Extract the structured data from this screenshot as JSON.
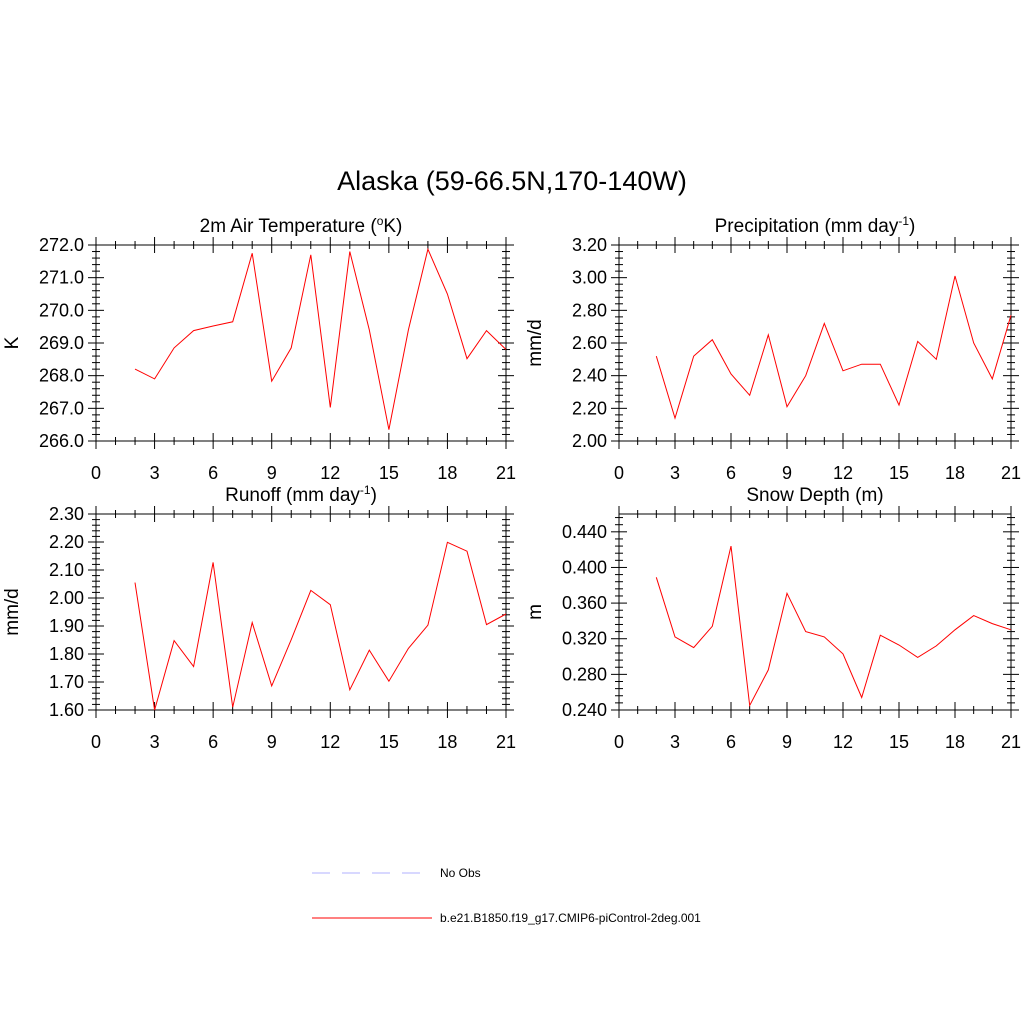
{
  "title": "Alaska (59-66.5N,170-140W)",
  "series_color": "#ff0000",
  "chart_data": [
    {
      "type": "line",
      "title_main": "2m Air Temperature (",
      "title_sup": "o",
      "title_end": "K)",
      "ylabel": "K",
      "xlim": [
        0,
        21
      ],
      "ylim": [
        266.0,
        272.0
      ],
      "xticks": [
        "0",
        "3",
        "6",
        "9",
        "12",
        "15",
        "18",
        "21"
      ],
      "yticks": [
        "266.0",
        "267.0",
        "268.0",
        "269.0",
        "270.0",
        "271.0",
        "272.0"
      ],
      "x": [
        2,
        3,
        4,
        5,
        6,
        7,
        8,
        9,
        10,
        11,
        12,
        13,
        14,
        15,
        16,
        17,
        18,
        19,
        20,
        21
      ],
      "series": [
        {
          "values": [
            268.2,
            267.9,
            268.85,
            269.38,
            269.52,
            269.65,
            271.75,
            267.83,
            268.85,
            271.7,
            267.03,
            271.8,
            269.4,
            266.35,
            269.4,
            271.87,
            270.5,
            268.52,
            269.38,
            268.8
          ]
        }
      ]
    },
    {
      "type": "line",
      "title_main": "Precipitation (mm day",
      "title_sup": "-1",
      "title_end": ")",
      "ylabel": "mm/d",
      "xlim": [
        0,
        21
      ],
      "ylim": [
        2.0,
        3.2
      ],
      "xticks": [
        "0",
        "3",
        "6",
        "9",
        "12",
        "15",
        "18",
        "21"
      ],
      "yticks": [
        "2.00",
        "2.20",
        "2.40",
        "2.60",
        "2.80",
        "3.00",
        "3.20"
      ],
      "x": [
        2,
        3,
        4,
        5,
        6,
        7,
        8,
        9,
        10,
        11,
        12,
        13,
        14,
        15,
        16,
        17,
        18,
        19,
        20,
        21
      ],
      "series": [
        {
          "values": [
            2.52,
            2.14,
            2.52,
            2.62,
            2.41,
            2.28,
            2.65,
            2.21,
            2.4,
            2.72,
            2.43,
            2.47,
            2.47,
            2.22,
            2.61,
            2.5,
            3.01,
            2.6,
            2.38,
            2.77
          ]
        }
      ]
    },
    {
      "type": "line",
      "title_main": "Runoff (mm day",
      "title_sup": "-1",
      "title_end": ")",
      "ylabel": "mm/d",
      "xlim": [
        0,
        21
      ],
      "ylim": [
        1.6,
        2.3
      ],
      "xticks": [
        "0",
        "3",
        "6",
        "9",
        "12",
        "15",
        "18",
        "21"
      ],
      "yticks": [
        "1.60",
        "1.70",
        "1.80",
        "1.90",
        "2.00",
        "2.10",
        "2.20",
        "2.30"
      ],
      "x": [
        2,
        3,
        4,
        5,
        6,
        7,
        8,
        9,
        10,
        11,
        12,
        13,
        14,
        15,
        16,
        17,
        18,
        19,
        20,
        21
      ],
      "series": [
        {
          "values": [
            2.055,
            1.6,
            1.848,
            1.755,
            2.127,
            1.61,
            1.912,
            1.686,
            1.851,
            2.027,
            1.976,
            1.672,
            1.814,
            1.703,
            1.82,
            1.903,
            2.199,
            2.167,
            1.905,
            1.943
          ]
        }
      ]
    },
    {
      "type": "line",
      "title_main": "Snow Depth (m)",
      "title_sup": "",
      "title_end": "",
      "ylabel": "m",
      "xlim": [
        0,
        21
      ],
      "ylim": [
        0.24,
        0.46
      ],
      "xticks": [
        "0",
        "3",
        "6",
        "9",
        "12",
        "15",
        "18",
        "21"
      ],
      "yticks": [
        "0.240",
        "0.280",
        "0.320",
        "0.360",
        "0.400",
        "0.440"
      ],
      "x": [
        2,
        3,
        4,
        5,
        6,
        7,
        8,
        9,
        10,
        11,
        12,
        13,
        14,
        15,
        16,
        17,
        18,
        19,
        20,
        21
      ],
      "series": [
        {
          "values": [
            0.389,
            0.322,
            0.31,
            0.334,
            0.424,
            0.245,
            0.285,
            0.371,
            0.328,
            0.322,
            0.303,
            0.254,
            0.324,
            0.313,
            0.299,
            0.312,
            0.33,
            0.346,
            0.337,
            0.33
          ]
        }
      ]
    }
  ],
  "legend": [
    {
      "label": "No Obs",
      "color": "#b0b0ff",
      "dash": true
    },
    {
      "label": "b.e21.B1850.f19_g17.CMIP6-piControl-2deg.001",
      "color": "#ff0000",
      "dash": false
    }
  ]
}
